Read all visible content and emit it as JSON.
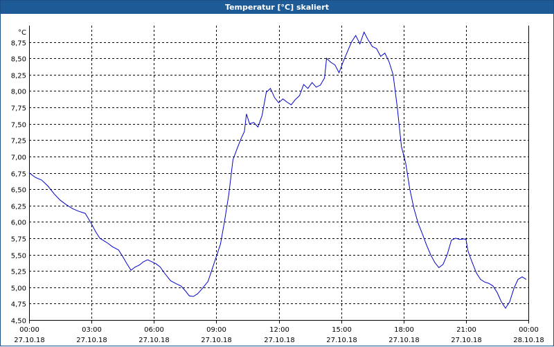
{
  "window": {
    "title": "Temperatur [°C] skaliert"
  },
  "colors": {
    "titlebar": "#1e5b96",
    "line": "#0000cc",
    "grid": "#000000"
  },
  "chart_data": {
    "type": "line",
    "title": "Temperatur [°C] skaliert",
    "ylabel": "°C",
    "xlabel": "",
    "ylim": [
      4.5,
      9.0
    ],
    "xlim": [
      0,
      24
    ],
    "grid": true,
    "y_ticks": [
      {
        "v": 4.5,
        "label": "4,50"
      },
      {
        "v": 4.75,
        "label": "4,75"
      },
      {
        "v": 5.0,
        "label": "5,00"
      },
      {
        "v": 5.25,
        "label": "5,25"
      },
      {
        "v": 5.5,
        "label": "5,50"
      },
      {
        "v": 5.75,
        "label": "5,75"
      },
      {
        "v": 6.0,
        "label": "6,00"
      },
      {
        "v": 6.25,
        "label": "6,25"
      },
      {
        "v": 6.5,
        "label": "6,50"
      },
      {
        "v": 6.75,
        "label": "6,75"
      },
      {
        "v": 7.0,
        "label": "7,00"
      },
      {
        "v": 7.25,
        "label": "7,25"
      },
      {
        "v": 7.5,
        "label": "7,50"
      },
      {
        "v": 7.75,
        "label": "7,75"
      },
      {
        "v": 8.0,
        "label": "8,00"
      },
      {
        "v": 8.25,
        "label": "8,25"
      },
      {
        "v": 8.5,
        "label": "8,50"
      },
      {
        "v": 8.75,
        "label": "8,75"
      }
    ],
    "x_ticks": [
      {
        "h": 0,
        "time": "00:00",
        "date": "27.10.18"
      },
      {
        "h": 3,
        "time": "03:00",
        "date": "27.10.18"
      },
      {
        "h": 6,
        "time": "06:00",
        "date": "27.10.18"
      },
      {
        "h": 9,
        "time": "09:00",
        "date": "27.10.18"
      },
      {
        "h": 12,
        "time": "12:00",
        "date": "27.10.18"
      },
      {
        "h": 15,
        "time": "15:00",
        "date": "27.10.18"
      },
      {
        "h": 18,
        "time": "18:00",
        "date": "27.10.18"
      },
      {
        "h": 21,
        "time": "21:00",
        "date": "27.10.18"
      },
      {
        "h": 24,
        "time": "00:00",
        "date": "28.10.18"
      }
    ],
    "series": [
      {
        "points": [
          [
            0.0,
            6.75
          ],
          [
            0.3,
            6.68
          ],
          [
            0.6,
            6.64
          ],
          [
            0.9,
            6.55
          ],
          [
            1.2,
            6.43
          ],
          [
            1.5,
            6.33
          ],
          [
            1.8,
            6.26
          ],
          [
            2.1,
            6.2
          ],
          [
            2.4,
            6.16
          ],
          [
            2.7,
            6.13
          ],
          [
            3.0,
            5.97
          ],
          [
            3.2,
            5.85
          ],
          [
            3.4,
            5.75
          ],
          [
            3.6,
            5.71
          ],
          [
            3.8,
            5.67
          ],
          [
            4.0,
            5.62
          ],
          [
            4.3,
            5.57
          ],
          [
            4.5,
            5.47
          ],
          [
            4.7,
            5.36
          ],
          [
            4.9,
            5.26
          ],
          [
            5.1,
            5.31
          ],
          [
            5.3,
            5.34
          ],
          [
            5.5,
            5.39
          ],
          [
            5.7,
            5.42
          ],
          [
            5.9,
            5.39
          ],
          [
            6.1,
            5.36
          ],
          [
            6.3,
            5.31
          ],
          [
            6.5,
            5.22
          ],
          [
            6.8,
            5.1
          ],
          [
            7.1,
            5.05
          ],
          [
            7.3,
            5.02
          ],
          [
            7.5,
            4.95
          ],
          [
            7.7,
            4.87
          ],
          [
            7.9,
            4.86
          ],
          [
            8.1,
            4.9
          ],
          [
            8.3,
            4.97
          ],
          [
            8.6,
            5.09
          ],
          [
            8.8,
            5.28
          ],
          [
            9.0,
            5.47
          ],
          [
            9.2,
            5.66
          ],
          [
            9.4,
            6.02
          ],
          [
            9.6,
            6.42
          ],
          [
            9.8,
            6.95
          ],
          [
            10.0,
            7.12
          ],
          [
            10.2,
            7.28
          ],
          [
            10.35,
            7.38
          ],
          [
            10.45,
            7.65
          ],
          [
            10.6,
            7.5
          ],
          [
            10.8,
            7.52
          ],
          [
            11.0,
            7.45
          ],
          [
            11.2,
            7.63
          ],
          [
            11.4,
            7.98
          ],
          [
            11.6,
            8.04
          ],
          [
            11.8,
            7.9
          ],
          [
            12.0,
            7.82
          ],
          [
            12.2,
            7.88
          ],
          [
            12.4,
            7.83
          ],
          [
            12.6,
            7.79
          ],
          [
            12.8,
            7.87
          ],
          [
            13.0,
            7.93
          ],
          [
            13.2,
            8.1
          ],
          [
            13.4,
            8.04
          ],
          [
            13.6,
            8.13
          ],
          [
            13.8,
            8.06
          ],
          [
            14.0,
            8.09
          ],
          [
            14.2,
            8.2
          ],
          [
            14.3,
            8.5
          ],
          [
            14.5,
            8.44
          ],
          [
            14.7,
            8.4
          ],
          [
            14.9,
            8.28
          ],
          [
            15.1,
            8.45
          ],
          [
            15.3,
            8.6
          ],
          [
            15.5,
            8.75
          ],
          [
            15.7,
            8.85
          ],
          [
            15.9,
            8.72
          ],
          [
            16.1,
            8.9
          ],
          [
            16.3,
            8.78
          ],
          [
            16.5,
            8.68
          ],
          [
            16.7,
            8.65
          ],
          [
            16.9,
            8.53
          ],
          [
            17.1,
            8.58
          ],
          [
            17.3,
            8.45
          ],
          [
            17.5,
            8.25
          ],
          [
            17.7,
            7.75
          ],
          [
            17.9,
            7.15
          ],
          [
            18.1,
            6.9
          ],
          [
            18.3,
            6.5
          ],
          [
            18.5,
            6.2
          ],
          [
            18.7,
            5.98
          ],
          [
            18.9,
            5.82
          ],
          [
            19.1,
            5.65
          ],
          [
            19.3,
            5.5
          ],
          [
            19.5,
            5.38
          ],
          [
            19.7,
            5.3
          ],
          [
            19.9,
            5.35
          ],
          [
            20.1,
            5.5
          ],
          [
            20.3,
            5.72
          ],
          [
            20.5,
            5.75
          ],
          [
            20.7,
            5.73
          ],
          [
            20.9,
            5.74
          ],
          [
            21.0,
            5.73
          ],
          [
            21.1,
            5.55
          ],
          [
            21.3,
            5.38
          ],
          [
            21.5,
            5.22
          ],
          [
            21.7,
            5.12
          ],
          [
            21.9,
            5.08
          ],
          [
            22.1,
            5.06
          ],
          [
            22.3,
            5.02
          ],
          [
            22.5,
            4.92
          ],
          [
            22.7,
            4.78
          ],
          [
            22.9,
            4.68
          ],
          [
            23.1,
            4.78
          ],
          [
            23.3,
            4.98
          ],
          [
            23.5,
            5.12
          ],
          [
            23.7,
            5.16
          ],
          [
            23.9,
            5.12
          ]
        ]
      }
    ]
  }
}
